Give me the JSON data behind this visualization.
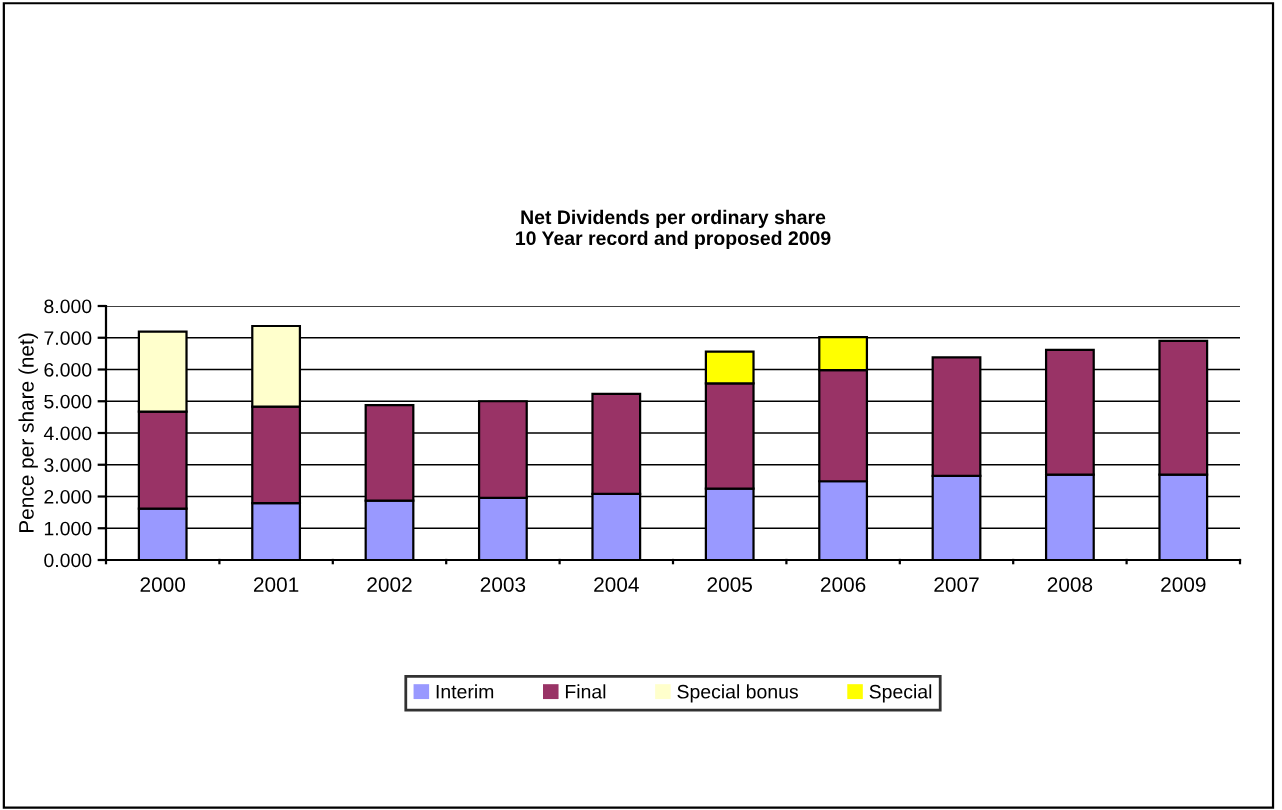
{
  "chart_data": {
    "type": "bar",
    "stacked": true,
    "title": "Net Dividends per ordinary share\n10 Year record and proposed 2009",
    "ylabel": "Pence per share (net)",
    "categories": [
      "2000",
      "2001",
      "2002",
      "2003",
      "2004",
      "2005",
      "2006",
      "2007",
      "2008",
      "2009"
    ],
    "series": [
      {
        "name": "Interim",
        "color": "#9999ff",
        "values": [
          1.62,
          1.79,
          1.87,
          1.96,
          2.08,
          2.25,
          2.48,
          2.65,
          2.69,
          2.69
        ]
      },
      {
        "name": "Final",
        "color": "#993366",
        "values": [
          3.05,
          3.04,
          3.01,
          3.04,
          3.15,
          3.31,
          3.5,
          3.73,
          3.93,
          4.21
        ]
      },
      {
        "name": "Special bonus",
        "color": "#ffffcc",
        "values": [
          2.52,
          2.54,
          null,
          null,
          null,
          null,
          null,
          null,
          null,
          null
        ]
      },
      {
        "name": "Special",
        "color": "#ffff00",
        "values": [
          null,
          null,
          null,
          null,
          null,
          1.0,
          1.04,
          null,
          null,
          null
        ]
      }
    ],
    "ylim": [
      0,
      8
    ],
    "yticks": [
      {
        "value": 0,
        "label": "0.000"
      },
      {
        "value": 1,
        "label": "1.000"
      },
      {
        "value": 2,
        "label": "2.000"
      },
      {
        "value": 3,
        "label": "3.000"
      },
      {
        "value": 4,
        "label": "4.000"
      },
      {
        "value": 5,
        "label": "5.000"
      },
      {
        "value": 6,
        "label": "6.000"
      },
      {
        "value": 7,
        "label": "7.000"
      },
      {
        "value": 8,
        "label": "8.000"
      }
    ],
    "grid": "y",
    "legend": "bottom"
  }
}
